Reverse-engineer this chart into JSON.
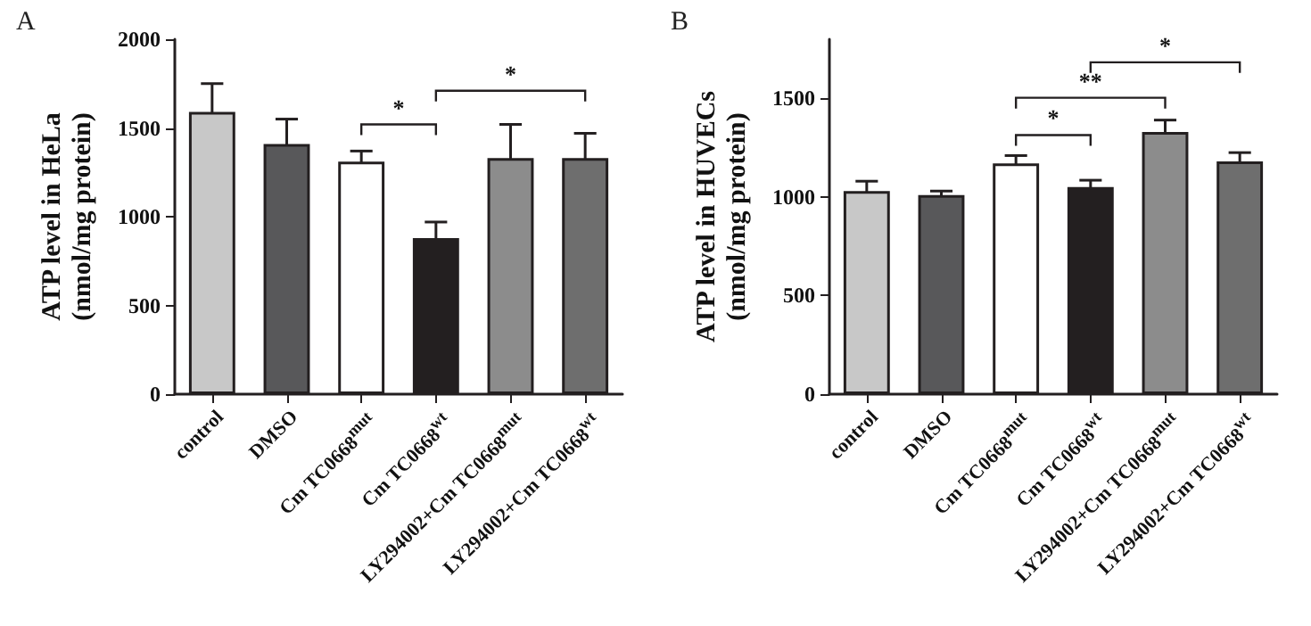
{
  "chart_data": [
    {
      "type": "bar",
      "title": "A",
      "ylabel": "ATP level in HeLa\n(nmol/mg protein)",
      "categories": [
        "control",
        "DMSO",
        "Cm TC0668$^{mut}$",
        "Cm TC0668$^{wt}$",
        "LY294002+Cm TC0668$^{mut}$",
        "LY294002+Cm TC0668$^{wt}$"
      ],
      "values": [
        1590,
        1410,
        1310,
        880,
        1330,
        1330
      ],
      "errors": [
        160,
        140,
        60,
        90,
        190,
        140
      ],
      "colors": [
        "#c8c8c8",
        "#58585a",
        "#ffffff",
        "#231f20",
        "#8c8c8c",
        "#6e6e6e"
      ],
      "ylim": [
        0,
        2000
      ],
      "yticks": [
        0,
        500,
        1000,
        1500,
        2000
      ],
      "grid": false,
      "annotations": [
        "*",
        "*"
      ]
    },
    {
      "type": "bar",
      "title": "B",
      "ylabel": "ATP level in HUVECs\n(nmol/mg protein)",
      "categories": [
        "control",
        "DMSO",
        "Cm TC0668$^{mut}$",
        "Cm TC0668$^{wt}$",
        "LY294002+Cm TC0668$^{mut}$",
        "LY294002+Cm TC0668$^{wt}$"
      ],
      "values": [
        1030,
        1010,
        1170,
        1050,
        1330,
        1180
      ],
      "errors": [
        50,
        20,
        40,
        35,
        60,
        45
      ],
      "colors": [
        "#c8c8c8",
        "#58585a",
        "#ffffff",
        "#231f20",
        "#8c8c8c",
        "#6e6e6e"
      ],
      "ylim": [
        0,
        1800
      ],
      "yticks": [
        0,
        500,
        1000,
        1500
      ],
      "grid": false,
      "annotations": [
        "*",
        "**",
        "*"
      ]
    }
  ]
}
